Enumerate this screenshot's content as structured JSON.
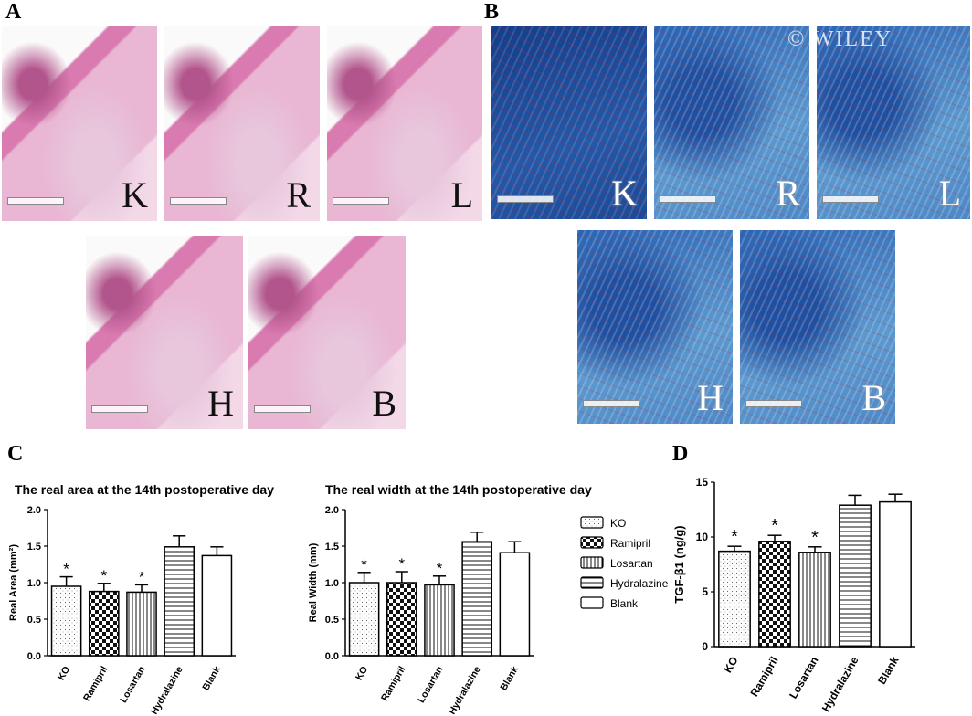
{
  "panels": {
    "a": "A",
    "b": "B",
    "c": "C",
    "d": "D"
  },
  "watermark": "© WILEY",
  "he_images": [
    {
      "tag": "K"
    },
    {
      "tag": "R"
    },
    {
      "tag": "L"
    },
    {
      "tag": "H"
    },
    {
      "tag": "B"
    }
  ],
  "mt_images": [
    {
      "tag": "K"
    },
    {
      "tag": "R"
    },
    {
      "tag": "L"
    },
    {
      "tag": "H"
    },
    {
      "tag": "B"
    }
  ],
  "legend": [
    "KO",
    "Ramipril",
    "Losartan",
    "Hydralazine",
    "Blank"
  ],
  "chart_data": [
    {
      "type": "bar",
      "title": "The real area at the 14th postoperative day",
      "ylabel": "Real Area (mm²)",
      "ylim": [
        0,
        2.0
      ],
      "yticks": [
        "0.0",
        "0.5",
        "1.0",
        "1.5",
        "2.0"
      ],
      "categories": [
        "KO",
        "Ramipril",
        "Losartan",
        "Hydralazine",
        "Blank"
      ],
      "values": [
        0.95,
        0.88,
        0.87,
        1.49,
        1.37
      ],
      "errors": [
        0.13,
        0.11,
        0.1,
        0.15,
        0.12
      ],
      "significance": [
        "*",
        "*",
        "*",
        "",
        ""
      ]
    },
    {
      "type": "bar",
      "title": "The real width at the 14th postoperative day",
      "ylabel": "Real Width (mm)",
      "ylim": [
        0,
        2.0
      ],
      "yticks": [
        "0.0",
        "0.5",
        "1.0",
        "1.5",
        "2.0"
      ],
      "categories": [
        "KO",
        "Ramipril",
        "Losartan",
        "Hydralazine",
        "Blank"
      ],
      "values": [
        1.0,
        1.0,
        0.97,
        1.56,
        1.41
      ],
      "errors": [
        0.14,
        0.15,
        0.12,
        0.13,
        0.15
      ],
      "significance": [
        "*",
        "*",
        "*",
        "",
        ""
      ]
    },
    {
      "type": "bar",
      "title": "",
      "ylabel": "TGF-β1 (ng/g)",
      "ylim": [
        0,
        15
      ],
      "yticks": [
        "0",
        "5",
        "10",
        "15"
      ],
      "categories": [
        "KO",
        "Ramipril",
        "Losartan",
        "Hydralazine",
        "Blank"
      ],
      "values": [
        8.7,
        9.6,
        8.6,
        12.9,
        13.2
      ],
      "errors": [
        0.45,
        0.55,
        0.5,
        0.9,
        0.7
      ],
      "significance": [
        "*",
        "*",
        "*",
        "",
        ""
      ]
    }
  ],
  "colors": {
    "he_tissue": "#d97bb0",
    "mt_collagen": "#2a64b5"
  }
}
